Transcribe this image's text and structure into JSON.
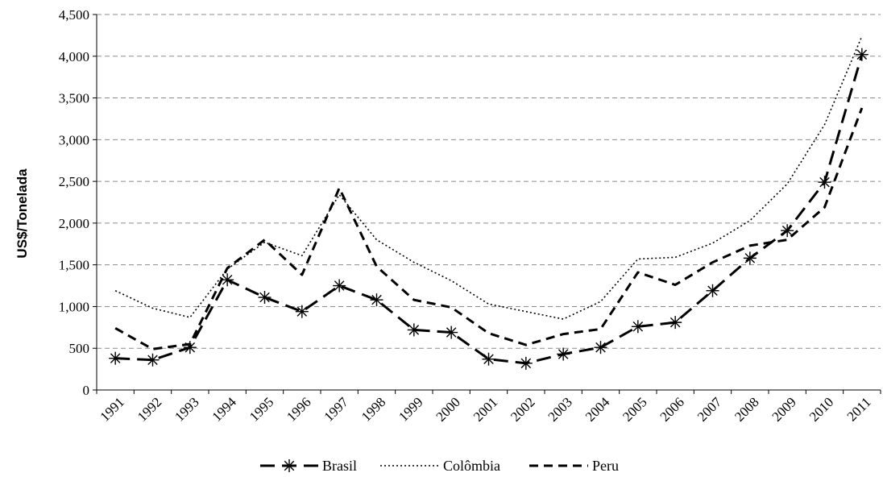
{
  "chart_data": {
    "type": "line",
    "ylabel": "US$/Tonelada",
    "xlabel": "",
    "ylim": [
      0,
      4500
    ],
    "yticks": [
      0,
      500,
      1000,
      1500,
      2000,
      2500,
      3000,
      3500,
      4000,
      4500
    ],
    "ytick_labels": [
      "0",
      "500",
      "1,000",
      "1,500",
      "2,000",
      "2,500",
      "3,000",
      "3,500",
      "4,000",
      "4,500"
    ],
    "grid": "horizontal dashed",
    "legend_position": "bottom-center",
    "categories": [
      "1991",
      "1992",
      "1993",
      "1994",
      "1995",
      "1996",
      "1997",
      "1998",
      "1999",
      "2000",
      "2001",
      "2002",
      "2003",
      "2004",
      "2005",
      "2006",
      "2007",
      "2008",
      "2009",
      "2010",
      "2011"
    ],
    "series": [
      {
        "name": "Brasil",
        "style": "long-dash with asterisk markers",
        "color": "#000000",
        "values": [
          380,
          360,
          510,
          1320,
          1110,
          940,
          1250,
          1080,
          720,
          690,
          370,
          320,
          430,
          510,
          760,
          810,
          1190,
          1580,
          1910,
          2490,
          4020
        ]
      },
      {
        "name": "Colômbia",
        "style": "dotted",
        "color": "#000000",
        "values": [
          1190,
          980,
          870,
          1450,
          1770,
          1610,
          2340,
          1800,
          1530,
          1310,
          1030,
          940,
          850,
          1060,
          1570,
          1590,
          1760,
          2030,
          2470,
          3180,
          4240
        ]
      },
      {
        "name": "Peru",
        "style": "dashed",
        "color": "#000000",
        "values": [
          740,
          490,
          550,
          1460,
          1800,
          1380,
          2420,
          1480,
          1080,
          990,
          680,
          540,
          670,
          730,
          1410,
          1260,
          1530,
          1730,
          1800,
          2190,
          3380
        ]
      }
    ]
  }
}
